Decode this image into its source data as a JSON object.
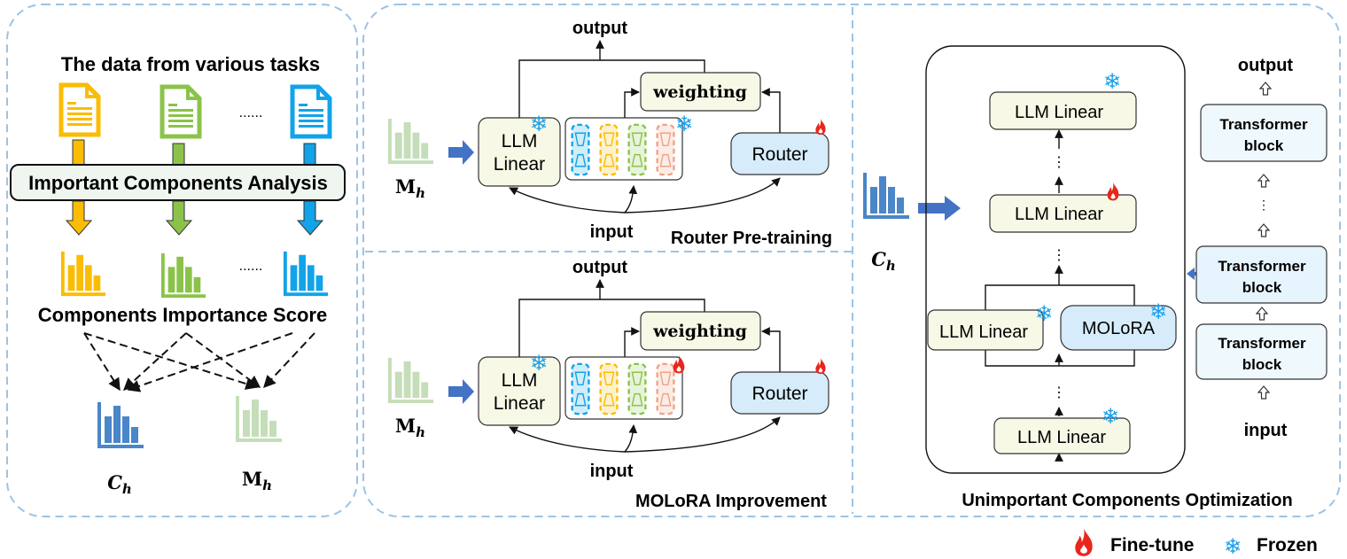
{
  "colors": {
    "panel_border": "#9cc3e6",
    "yellow": "#fbbc05",
    "green": "#8bc34a",
    "blue": "#12a3e8",
    "chart_blue": "#4a86c8",
    "chart_lightgreen": "#c5deb9",
    "router_fill": "#d6ecfa",
    "box_fill": "#f7f9e6",
    "flame": "#e8261c",
    "snow": "#1ea0e8"
  },
  "icons": {
    "doc": "document-icon",
    "chart": "bar-chart-icon",
    "flame": "flame-icon",
    "snowflake": "snowflake-icon"
  },
  "left": {
    "title": "The data from various tasks",
    "dots": "......",
    "analysis": "Important Components Analysis",
    "score": "Components Importance Score",
    "c_label": "C",
    "m_label": "M",
    "sub": "h"
  },
  "pretrain": {
    "output": "output",
    "llm1": "LLM",
    "llm2": "Linear",
    "weighting": "weighting",
    "router": "Router",
    "input": "input",
    "title": "Router Pre-training"
  },
  "improve": {
    "output": "output",
    "llm1": "LLM",
    "llm2": "Linear",
    "weighting": "weighting",
    "router": "Router",
    "input": "input",
    "title": "MOLoRA Improvement"
  },
  "optimize": {
    "llm_linear": "LLM Linear",
    "molora": "MOLoRA",
    "dots": "⋮",
    "title": "Unimportant Components Optimization",
    "output": "output",
    "block1": "Transformer",
    "block2": "block",
    "input": "input"
  },
  "legend": {
    "finetune": "Fine-tune",
    "frozen": "Frozen"
  }
}
